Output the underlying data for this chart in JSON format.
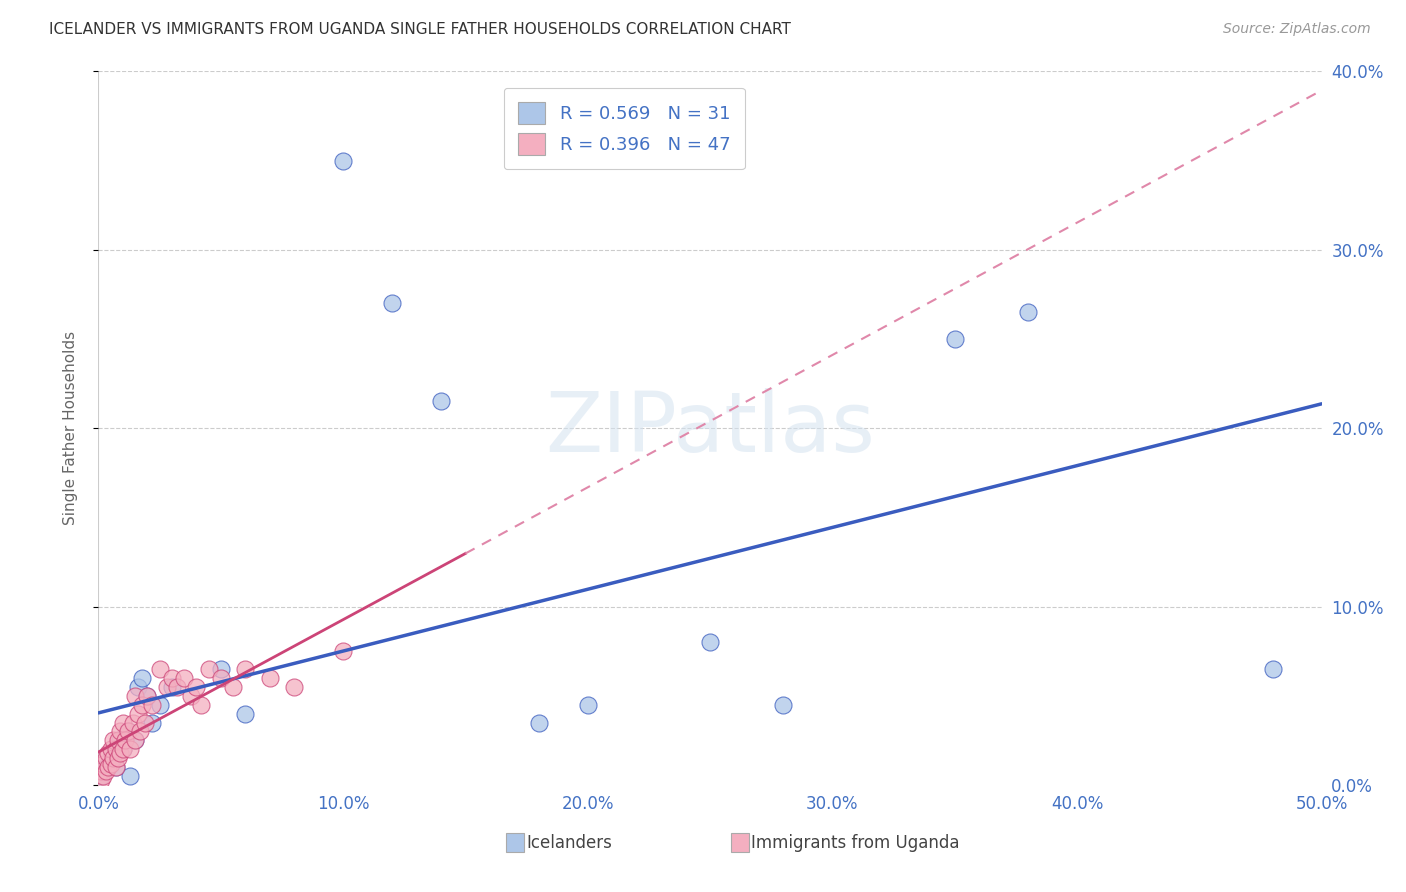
{
  "title": "ICELANDER VS IMMIGRANTS FROM UGANDA SINGLE FATHER HOUSEHOLDS CORRELATION CHART",
  "source": "Source: ZipAtlas.com",
  "ylabel_label": "Single Father Households",
  "xlim": [
    0.0,
    0.5
  ],
  "ylim": [
    0.0,
    0.4
  ],
  "x_ticks": [
    0.0,
    0.1,
    0.2,
    0.3,
    0.4,
    0.5
  ],
  "y_ticks": [
    0.0,
    0.1,
    0.2,
    0.3,
    0.4
  ],
  "watermark": "ZIPatlas",
  "legend_label1": "Icelanders",
  "legend_label2": "Immigrants from Uganda",
  "R1": 0.569,
  "N1": 31,
  "R2": 0.396,
  "N2": 47,
  "color_blue": "#adc6e8",
  "color_pink": "#f4afc0",
  "color_blue_line": "#3a5cbf",
  "color_pink_line_solid": "#cc4477",
  "color_pink_line_dashed": "#e088aa",
  "grid_color": "#cccccc",
  "background_color": "#ffffff",
  "title_color": "#333333",
  "tick_color": "#4472c4",
  "ice_x": [
    0.001,
    0.002,
    0.003,
    0.004,
    0.005,
    0.006,
    0.007,
    0.008,
    0.009,
    0.01,
    0.012,
    0.013,
    0.015,
    0.016,
    0.018,
    0.02,
    0.022,
    0.025,
    0.03,
    0.05,
    0.06,
    0.1,
    0.12,
    0.14,
    0.18,
    0.2,
    0.25,
    0.28,
    0.38,
    0.48,
    0.35
  ],
  "ice_y": [
    0.005,
    0.008,
    0.01,
    0.012,
    0.015,
    0.018,
    0.01,
    0.02,
    0.025,
    0.02,
    0.03,
    0.005,
    0.025,
    0.055,
    0.06,
    0.05,
    0.035,
    0.045,
    0.055,
    0.065,
    0.04,
    0.35,
    0.27,
    0.215,
    0.035,
    0.045,
    0.08,
    0.045,
    0.265,
    0.065,
    0.25
  ],
  "ug_x": [
    0.001,
    0.001,
    0.002,
    0.002,
    0.003,
    0.003,
    0.004,
    0.004,
    0.005,
    0.005,
    0.006,
    0.006,
    0.007,
    0.007,
    0.008,
    0.008,
    0.009,
    0.009,
    0.01,
    0.01,
    0.011,
    0.012,
    0.013,
    0.014,
    0.015,
    0.015,
    0.016,
    0.017,
    0.018,
    0.019,
    0.02,
    0.022,
    0.025,
    0.028,
    0.03,
    0.032,
    0.035,
    0.038,
    0.04,
    0.042,
    0.045,
    0.05,
    0.055,
    0.06,
    0.07,
    0.08,
    0.1
  ],
  "ug_y": [
    0.003,
    0.008,
    0.005,
    0.012,
    0.008,
    0.015,
    0.01,
    0.018,
    0.012,
    0.02,
    0.015,
    0.025,
    0.01,
    0.02,
    0.015,
    0.025,
    0.018,
    0.03,
    0.02,
    0.035,
    0.025,
    0.03,
    0.02,
    0.035,
    0.025,
    0.05,
    0.04,
    0.03,
    0.045,
    0.035,
    0.05,
    0.045,
    0.065,
    0.055,
    0.06,
    0.055,
    0.06,
    0.05,
    0.055,
    0.045,
    0.065,
    0.06,
    0.055,
    0.065,
    0.06,
    0.055,
    0.075
  ]
}
